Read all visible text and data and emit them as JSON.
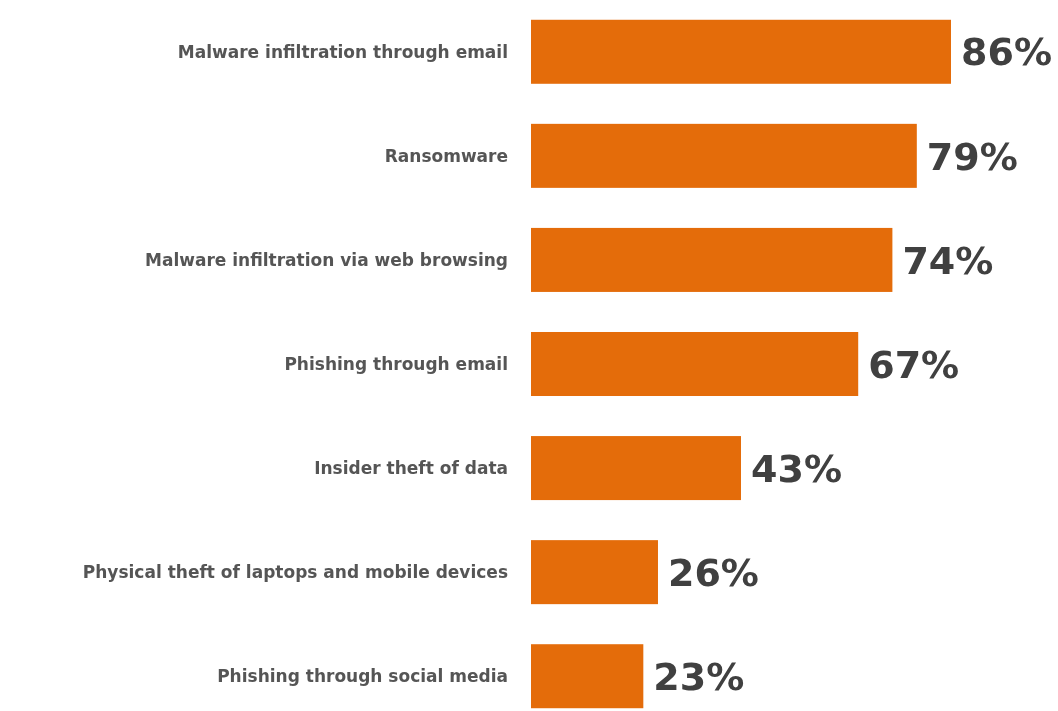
{
  "chart_data": {
    "type": "bar",
    "orientation": "horizontal",
    "categories": [
      "Malware infiltration through email",
      "Ransomware",
      "Malware infiltration via web browsing",
      "Phishing through email",
      "Insider theft of data",
      "Physical theft of laptops and mobile devices",
      "Phishing through social media"
    ],
    "values": [
      86,
      79,
      74,
      67,
      43,
      26,
      23
    ],
    "value_labels": [
      "86%",
      "79%",
      "74%",
      "67%",
      "43%",
      "26%",
      "23%"
    ],
    "color": "#e46c0a"
  }
}
